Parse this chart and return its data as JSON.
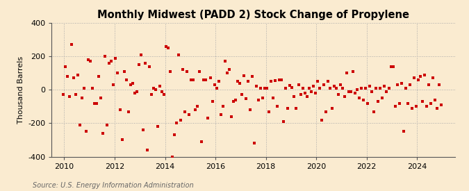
{
  "title": "Monthly Midwest (PADD 2) Stock Change of Propylene",
  "ylabel": "Thousand Barrels",
  "source": "Source: U.S. Energy Information Administration",
  "background_color": "#faebd0",
  "marker_color": "#cc0000",
  "ylim": [
    -400,
    400
  ],
  "yticks": [
    -400,
    -200,
    0,
    200,
    400
  ],
  "xlim": [
    2009.5,
    2025.5
  ],
  "xticks": [
    2010,
    2012,
    2014,
    2016,
    2018,
    2020,
    2022,
    2024
  ],
  "data": {
    "2009-12": -30,
    "2010-01": 140,
    "2010-02": 80,
    "2010-03": -40,
    "2010-04": 270,
    "2010-05": 70,
    "2010-06": -30,
    "2010-07": 90,
    "2010-08": -210,
    "2010-09": -50,
    "2010-10": 10,
    "2010-11": -250,
    "2010-12": 180,
    "2011-01": 170,
    "2011-02": 10,
    "2011-03": -80,
    "2011-04": -80,
    "2011-05": 80,
    "2011-06": -50,
    "2011-07": -260,
    "2011-08": 200,
    "2011-09": -210,
    "2011-10": 160,
    "2011-11": 170,
    "2011-12": 30,
    "2012-01": 190,
    "2012-02": 100,
    "2012-03": -120,
    "2012-04": -300,
    "2012-05": 110,
    "2012-06": 60,
    "2012-07": -130,
    "2012-08": 30,
    "2012-09": 40,
    "2012-10": -20,
    "2012-11": -10,
    "2012-12": 150,
    "2013-01": 210,
    "2013-02": -240,
    "2013-03": 160,
    "2013-04": -360,
    "2013-05": 140,
    "2013-06": -30,
    "2013-07": 10,
    "2013-08": 0,
    "2013-09": -220,
    "2013-10": 20,
    "2013-11": -10,
    "2013-12": -30,
    "2014-01": 260,
    "2014-02": 250,
    "2014-03": 110,
    "2014-04": -400,
    "2014-05": -270,
    "2014-06": -200,
    "2014-07": 210,
    "2014-08": -180,
    "2014-09": 120,
    "2014-10": -130,
    "2014-11": 110,
    "2014-12": -150,
    "2015-01": 60,
    "2015-02": 60,
    "2015-03": -120,
    "2015-04": -100,
    "2015-05": 110,
    "2015-06": -310,
    "2015-07": 60,
    "2015-08": 60,
    "2015-09": -170,
    "2015-10": 70,
    "2015-11": -70,
    "2015-12": 30,
    "2016-01": 10,
    "2016-02": 50,
    "2016-03": -150,
    "2016-04": -100,
    "2016-05": 170,
    "2016-06": 100,
    "2016-07": 120,
    "2016-08": -160,
    "2016-09": -70,
    "2016-10": -60,
    "2016-11": 50,
    "2016-12": 40,
    "2017-01": -30,
    "2017-02": 85,
    "2017-03": -55,
    "2017-04": 50,
    "2017-05": -120,
    "2017-06": 80,
    "2017-07": -320,
    "2017-08": 20,
    "2017-09": -60,
    "2017-10": 10,
    "2017-11": -50,
    "2017-12": 10,
    "2018-01": 10,
    "2018-02": -130,
    "2018-03": 50,
    "2018-04": -50,
    "2018-05": 55,
    "2018-06": -100,
    "2018-07": 60,
    "2018-08": 60,
    "2018-09": -190,
    "2018-10": 10,
    "2018-11": -110,
    "2018-12": 25,
    "2019-01": 15,
    "2019-02": -40,
    "2019-03": -110,
    "2019-04": 30,
    "2019-05": -30,
    "2019-06": 10,
    "2019-07": -20,
    "2019-08": -40,
    "2019-09": 10,
    "2019-10": -10,
    "2019-11": 20,
    "2019-12": -20,
    "2020-01": 50,
    "2020-02": 10,
    "2020-03": -180,
    "2020-04": 30,
    "2020-05": -130,
    "2020-06": 50,
    "2020-07": 10,
    "2020-08": -110,
    "2020-09": 20,
    "2020-10": 10,
    "2020-11": -30,
    "2020-12": 30,
    "2021-01": 10,
    "2021-02": -40,
    "2021-03": 100,
    "2021-04": -10,
    "2021-05": -10,
    "2021-06": 110,
    "2021-07": -20,
    "2021-08": 0,
    "2021-09": -50,
    "2021-10": 10,
    "2021-11": -60,
    "2021-12": 10,
    "2022-01": -80,
    "2022-02": 20,
    "2022-03": -10,
    "2022-04": -130,
    "2022-05": 10,
    "2022-06": -70,
    "2022-07": 10,
    "2022-08": -50,
    "2022-09": 20,
    "2022-10": -10,
    "2022-11": 10,
    "2022-12": 140,
    "2023-01": 140,
    "2023-02": -100,
    "2023-03": 30,
    "2023-04": -80,
    "2023-05": 40,
    "2023-06": -250,
    "2023-07": 10,
    "2023-08": -80,
    "2023-09": 30,
    "2023-10": -110,
    "2023-11": 70,
    "2023-12": -100,
    "2024-01": 60,
    "2024-02": 80,
    "2024-03": -70,
    "2024-04": 90,
    "2024-05": -100,
    "2024-06": 30,
    "2024-07": -80,
    "2024-08": 70,
    "2024-09": -60,
    "2024-10": -110,
    "2024-11": 30,
    "2024-12": -90
  }
}
